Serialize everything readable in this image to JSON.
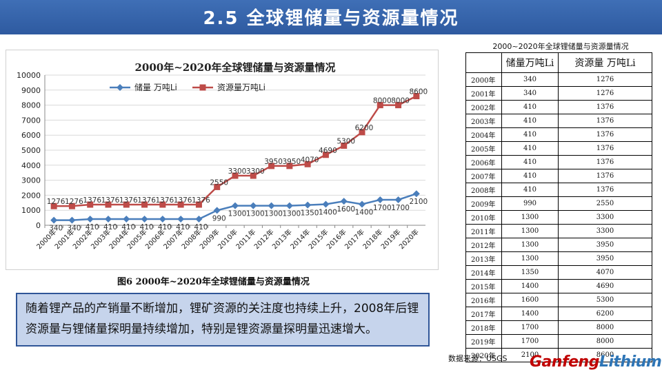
{
  "header": {
    "title": "2.5  全球锂储量与资源量情况"
  },
  "chart_data": {
    "type": "line",
    "title": "2000年~2020年全球锂储量与资源量情况",
    "categories": [
      "2000年",
      "2001年",
      "2002年",
      "2003年",
      "2004年",
      "2005年",
      "2006年",
      "2007年",
      "2008年",
      "2009年",
      "2010年",
      "2011年",
      "2012年",
      "2013年",
      "2014年",
      "2015年",
      "2016年",
      "2017年",
      "2018年",
      "2019年",
      "2020年"
    ],
    "series": [
      {
        "name": "储量 万吨Li",
        "color": "#4a7ebb",
        "marker": "diamond",
        "values": [
          340,
          340,
          410,
          410,
          410,
          410,
          410,
          410,
          410,
          990,
          1300,
          1300,
          1300,
          1300,
          1350,
          1400,
          1600,
          1400,
          1700,
          1700,
          2100
        ]
      },
      {
        "name": "资源量万吨Li",
        "color": "#be4b48",
        "marker": "square",
        "values": [
          1276,
          1276,
          1376,
          1376,
          1376,
          1376,
          1376,
          1376,
          1376,
          2550,
          3300,
          3300,
          3950,
          3950,
          4070,
          4690,
          5300,
          6200,
          8000,
          8000,
          8600
        ]
      }
    ],
    "ylim": [
      0,
      10000
    ],
    "yticks": [
      0,
      1000,
      2000,
      3000,
      4000,
      5000,
      6000,
      7000,
      8000,
      9000,
      10000
    ],
    "grid": true,
    "legend": "top-left"
  },
  "caption": "图6 2000年~2020年全球锂储量与资源量情况",
  "note": "随着锂产品的产销量不断增加，锂矿资源的关注度也持续上升，2008年后锂资源量与锂储量探明量持续增加，特别是锂资源量探明量迅速增大。",
  "table": {
    "title": "2000~2020年全球锂储量与资源量情况",
    "headers": [
      "",
      "储量万吨Li",
      "资源量 万吨Li"
    ],
    "rows": [
      [
        "2000年",
        "340",
        "1276"
      ],
      [
        "2001年",
        "340",
        "1276"
      ],
      [
        "2002年",
        "410",
        "1376"
      ],
      [
        "2003年",
        "410",
        "1376"
      ],
      [
        "2004年",
        "410",
        "1376"
      ],
      [
        "2005年",
        "410",
        "1376"
      ],
      [
        "2006年",
        "410",
        "1376"
      ],
      [
        "2007年",
        "410",
        "1376"
      ],
      [
        "2008年",
        "410",
        "1376"
      ],
      [
        "2009年",
        "990",
        "2550"
      ],
      [
        "2010年",
        "1300",
        "3300"
      ],
      [
        "2011年",
        "1300",
        "3300"
      ],
      [
        "2012年",
        "1300",
        "3950"
      ],
      [
        "2013年",
        "1300",
        "3950"
      ],
      [
        "2014年",
        "1350",
        "4070"
      ],
      [
        "2015年",
        "1400",
        "4690"
      ],
      [
        "2016年",
        "1600",
        "5300"
      ],
      [
        "2017年",
        "1400",
        "6200"
      ],
      [
        "2018年",
        "1700",
        "8000"
      ],
      [
        "2019年",
        "1700",
        "8000"
      ],
      [
        "2020年",
        "2100",
        "8600"
      ]
    ]
  },
  "source": "数据来源：USGS",
  "logo": {
    "part1": "Ganfeng",
    "part2": "Lithium"
  }
}
